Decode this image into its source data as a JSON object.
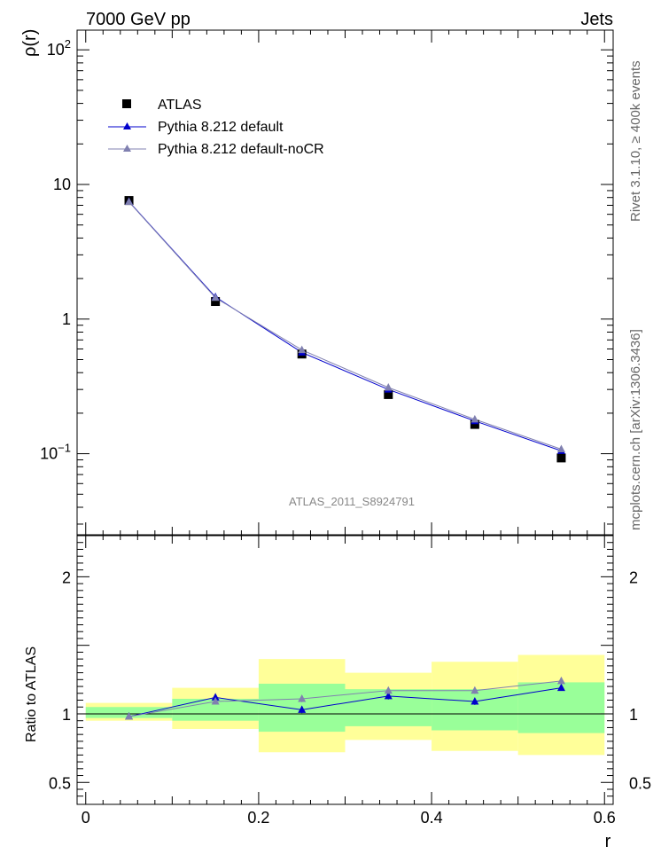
{
  "header": {
    "left": "7000 GeV pp",
    "right": "Jets"
  },
  "side_labels": {
    "top": "Rivet 3.1.10, ≥ 400k events",
    "bottom": "mcplots.cern.ch [arXiv:1306.3436]"
  },
  "watermark": "ATLAS_2011_S8924791",
  "chart_data": [
    {
      "id": "main",
      "type": "scatter",
      "yscale": "log",
      "ylabel": "ρ(r)",
      "xlim": [
        -0.01,
        0.61
      ],
      "ylim": [
        0.025,
        140
      ],
      "yticks_major": [
        {
          "v": 0.1,
          "base": "10",
          "exp": "−1"
        },
        {
          "v": 1,
          "base": "1",
          "exp": ""
        },
        {
          "v": 10,
          "base": "10",
          "exp": ""
        },
        {
          "v": 100,
          "base": "10",
          "exp": "2"
        }
      ],
      "legend": [
        {
          "label": "ATLAS",
          "marker": "square",
          "color": "#000000"
        },
        {
          "label": "Pythia 8.212 default",
          "marker": "triangle",
          "color": "#0000cc"
        },
        {
          "label": "Pythia 8.212 default-noCR",
          "marker": "triangle",
          "color": "#8080b0"
        }
      ],
      "series": [
        {
          "name": "ATLAS",
          "color": "#000000",
          "x": [
            0.05,
            0.15,
            0.25,
            0.35,
            0.45,
            0.55
          ],
          "y": [
            7.6,
            1.35,
            0.55,
            0.275,
            0.165,
            0.093
          ]
        },
        {
          "name": "Pythia 8.212 default",
          "color": "#0000cc",
          "x": [
            0.05,
            0.15,
            0.25,
            0.35,
            0.45,
            0.55
          ],
          "y": [
            7.45,
            1.46,
            0.565,
            0.3,
            0.175,
            0.105
          ]
        },
        {
          "name": "Pythia 8.212 default-noCR",
          "color": "#8080b0",
          "x": [
            0.05,
            0.15,
            0.25,
            0.35,
            0.45,
            0.55
          ],
          "y": [
            7.42,
            1.44,
            0.59,
            0.31,
            0.18,
            0.108
          ]
        }
      ]
    },
    {
      "id": "ratio",
      "type": "scatter",
      "ylabel": "Ratio to ATLAS",
      "xlabel": "r",
      "xlim": [
        -0.01,
        0.61
      ],
      "ylim": [
        0.34,
        2.3
      ],
      "xticks": [
        {
          "v": 0,
          "label": "0"
        },
        {
          "v": 0.2,
          "label": "0.2"
        },
        {
          "v": 0.4,
          "label": "0.4"
        },
        {
          "v": 0.6,
          "label": "0.6"
        }
      ],
      "yticks": [
        {
          "v": 0.5,
          "label": "0.5"
        },
        {
          "v": 1,
          "label": "1"
        },
        {
          "v": 2,
          "label": "2"
        }
      ],
      "bands": [
        {
          "x0": 0.0,
          "x1": 0.1,
          "yellow": [
            0.95,
            1.08
          ],
          "green": [
            0.97,
            1.05
          ]
        },
        {
          "x0": 0.1,
          "x1": 0.2,
          "yellow": [
            0.89,
            1.19
          ],
          "green": [
            0.95,
            1.11
          ]
        },
        {
          "x0": 0.2,
          "x1": 0.3,
          "yellow": [
            0.72,
            1.4
          ],
          "green": [
            0.87,
            1.22
          ]
        },
        {
          "x0": 0.3,
          "x1": 0.4,
          "yellow": [
            0.81,
            1.3
          ],
          "green": [
            0.91,
            1.18
          ]
        },
        {
          "x0": 0.4,
          "x1": 0.5,
          "yellow": [
            0.73,
            1.38
          ],
          "green": [
            0.88,
            1.18
          ]
        },
        {
          "x0": 0.5,
          "x1": 0.6,
          "yellow": [
            0.7,
            1.43
          ],
          "green": [
            0.86,
            1.23
          ]
        }
      ],
      "series": [
        {
          "name": "Pythia 8.212 default",
          "color": "#0000cc",
          "x": [
            0.05,
            0.15,
            0.25,
            0.35,
            0.45,
            0.55
          ],
          "y": [
            0.98,
            1.12,
            1.03,
            1.13,
            1.09,
            1.19
          ],
          "err": [
            0.01,
            0.02,
            0.025,
            0.025,
            0.025,
            0.02
          ]
        },
        {
          "name": "Pythia 8.212 default-noCR",
          "color": "#8080b0",
          "x": [
            0.05,
            0.15,
            0.25,
            0.35,
            0.45,
            0.55
          ],
          "y": [
            0.98,
            1.09,
            1.11,
            1.17,
            1.17,
            1.24
          ],
          "err": [
            0.01,
            0.02,
            0.025,
            0.025,
            0.025,
            0.02
          ]
        }
      ]
    }
  ]
}
